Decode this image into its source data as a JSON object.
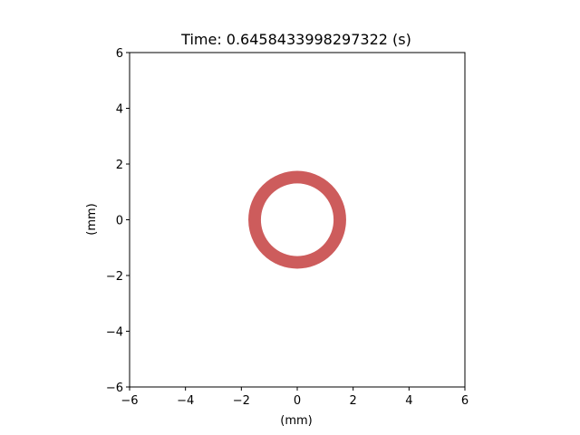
{
  "chart_data": {
    "type": "scatter",
    "title": "Time: 0.6458433998297322 (s)",
    "xlabel": "(mm)",
    "ylabel": "(mm)",
    "xlim": [
      -6,
      6
    ],
    "ylim": [
      -6,
      6
    ],
    "xticks": [
      -6,
      -4,
      -2,
      0,
      2,
      4,
      6
    ],
    "yticks": [
      -6,
      -4,
      -2,
      0,
      2,
      4,
      6
    ],
    "xtick_labels": [
      "−6",
      "−4",
      "−2",
      "0",
      "2",
      "4",
      "6"
    ],
    "ytick_labels": [
      "−6",
      "−4",
      "−2",
      "0",
      "2",
      "4",
      "6"
    ],
    "grid": false,
    "shapes": [
      {
        "kind": "annulus",
        "center": [
          0,
          0
        ],
        "outer_radius": 1.75,
        "inner_radius": 1.3,
        "color": "#cd5c5c"
      }
    ]
  }
}
